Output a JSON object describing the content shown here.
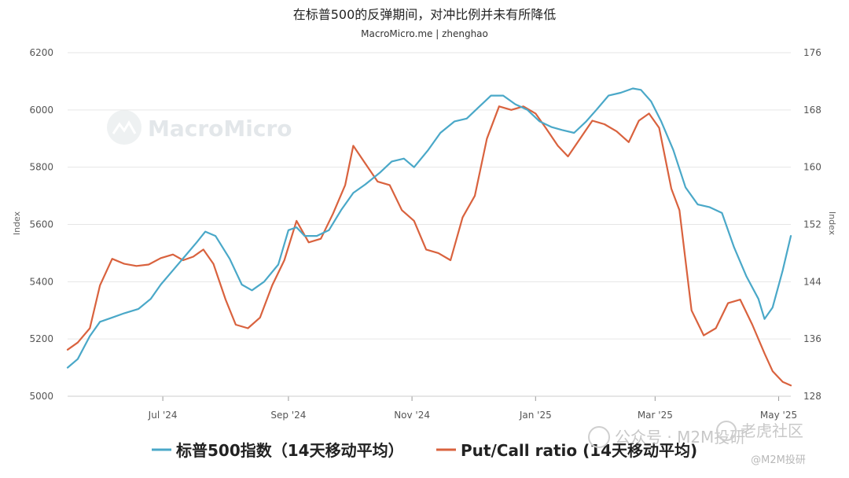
{
  "chart_data": {
    "type": "line",
    "title": "在标普500的反弹期间，对冲比例并未有所降低",
    "subtitle": "MacroMicro.me | zhenghao",
    "xlabel": "",
    "y_left_label": "Index",
    "y_right_label": "Index",
    "y_left_lim": [
      5000,
      6200
    ],
    "y_left_ticks": [
      "6200",
      "6000",
      "5800",
      "5600",
      "5400",
      "5200",
      "5000"
    ],
    "y_right_lim": [
      128,
      176
    ],
    "y_right_ticks": [
      "176",
      "168",
      "160",
      "152",
      "144",
      "136",
      "128"
    ],
    "x_range": [
      "2024-05-15",
      "2025-05-07"
    ],
    "x_ticks": [
      {
        "date": "2024-07-01",
        "label": "Jul '24"
      },
      {
        "date": "2024-09-01",
        "label": "Sep '24"
      },
      {
        "date": "2024-11-01",
        "label": "Nov '24"
      },
      {
        "date": "2025-01-01",
        "label": "Jan '25"
      },
      {
        "date": "2025-03-01",
        "label": "Mar '25"
      },
      {
        "date": "2025-05-01",
        "label": "May '25"
      }
    ],
    "grid": true,
    "legend_position": "bottom",
    "series": [
      {
        "name": "标普500指数（14天移动平均）",
        "axis": "left",
        "color": "#4aa8c8",
        "points": [
          [
            "2024-05-15",
            5100
          ],
          [
            "2024-05-20",
            5130
          ],
          [
            "2024-05-26",
            5210
          ],
          [
            "2024-05-31",
            5260
          ],
          [
            "2024-06-06",
            5275
          ],
          [
            "2024-06-12",
            5290
          ],
          [
            "2024-06-19",
            5305
          ],
          [
            "2024-06-25",
            5340
          ],
          [
            "2024-06-30",
            5390
          ],
          [
            "2024-07-06",
            5440
          ],
          [
            "2024-07-12",
            5490
          ],
          [
            "2024-07-18",
            5540
          ],
          [
            "2024-07-22",
            5575
          ],
          [
            "2024-07-27",
            5560
          ],
          [
            "2024-08-03",
            5480
          ],
          [
            "2024-08-09",
            5390
          ],
          [
            "2024-08-14",
            5370
          ],
          [
            "2024-08-20",
            5400
          ],
          [
            "2024-08-27",
            5460
          ],
          [
            "2024-09-01",
            5580
          ],
          [
            "2024-09-05",
            5590
          ],
          [
            "2024-09-09",
            5560
          ],
          [
            "2024-09-15",
            5560
          ],
          [
            "2024-09-21",
            5580
          ],
          [
            "2024-09-27",
            5650
          ],
          [
            "2024-10-03",
            5710
          ],
          [
            "2024-10-09",
            5740
          ],
          [
            "2024-10-16",
            5780
          ],
          [
            "2024-10-22",
            5820
          ],
          [
            "2024-10-28",
            5830
          ],
          [
            "2024-11-02",
            5800
          ],
          [
            "2024-11-09",
            5860
          ],
          [
            "2024-11-15",
            5920
          ],
          [
            "2024-11-22",
            5960
          ],
          [
            "2024-11-28",
            5970
          ],
          [
            "2024-12-04",
            6010
          ],
          [
            "2024-12-10",
            6050
          ],
          [
            "2024-12-16",
            6050
          ],
          [
            "2024-12-22",
            6020
          ],
          [
            "2024-12-28",
            6000
          ],
          [
            "2025-01-03",
            5960
          ],
          [
            "2025-01-09",
            5940
          ],
          [
            "2025-01-14",
            5930
          ],
          [
            "2025-01-20",
            5920
          ],
          [
            "2025-01-26",
            5960
          ],
          [
            "2025-01-31",
            6000
          ],
          [
            "2025-02-06",
            6050
          ],
          [
            "2025-02-12",
            6060
          ],
          [
            "2025-02-18",
            6075
          ],
          [
            "2025-02-22",
            6070
          ],
          [
            "2025-02-27",
            6030
          ],
          [
            "2025-03-04",
            5960
          ],
          [
            "2025-03-10",
            5860
          ],
          [
            "2025-03-16",
            5730
          ],
          [
            "2025-03-22",
            5670
          ],
          [
            "2025-03-28",
            5660
          ],
          [
            "2025-04-03",
            5640
          ],
          [
            "2025-04-09",
            5520
          ],
          [
            "2025-04-15",
            5420
          ],
          [
            "2025-04-21",
            5340
          ],
          [
            "2025-04-24",
            5270
          ],
          [
            "2025-04-28",
            5310
          ],
          [
            "2025-05-03",
            5440
          ],
          [
            "2025-05-07",
            5560
          ]
        ]
      },
      {
        "name": "Put/Call ratio (14天移动平均)",
        "axis": "right",
        "color": "#d9623e",
        "points": [
          [
            "2024-05-15",
            134.5
          ],
          [
            "2024-05-20",
            135.5
          ],
          [
            "2024-05-26",
            137.5
          ],
          [
            "2024-05-31",
            143.5
          ],
          [
            "2024-06-06",
            147.2
          ],
          [
            "2024-06-12",
            146.5
          ],
          [
            "2024-06-18",
            146.2
          ],
          [
            "2024-06-24",
            146.4
          ],
          [
            "2024-06-30",
            147.3
          ],
          [
            "2024-07-06",
            147.8
          ],
          [
            "2024-07-11",
            147.0
          ],
          [
            "2024-07-16",
            147.5
          ],
          [
            "2024-07-21",
            148.5
          ],
          [
            "2024-07-26",
            146.5
          ],
          [
            "2024-08-01",
            141.5
          ],
          [
            "2024-08-06",
            138.0
          ],
          [
            "2024-08-12",
            137.5
          ],
          [
            "2024-08-18",
            139.0
          ],
          [
            "2024-08-24",
            143.5
          ],
          [
            "2024-08-30",
            147.0
          ],
          [
            "2024-09-05",
            152.5
          ],
          [
            "2024-09-11",
            149.5
          ],
          [
            "2024-09-17",
            150.0
          ],
          [
            "2024-09-23",
            153.5
          ],
          [
            "2024-09-29",
            157.5
          ],
          [
            "2024-10-03",
            163.0
          ],
          [
            "2024-10-09",
            160.5
          ],
          [
            "2024-10-15",
            158.0
          ],
          [
            "2024-10-21",
            157.5
          ],
          [
            "2024-10-27",
            154.0
          ],
          [
            "2024-11-02",
            152.5
          ],
          [
            "2024-11-08",
            148.5
          ],
          [
            "2024-11-14",
            148.0
          ],
          [
            "2024-11-20",
            147.0
          ],
          [
            "2024-11-26",
            153.0
          ],
          [
            "2024-12-02",
            156.0
          ],
          [
            "2024-12-08",
            164.0
          ],
          [
            "2024-12-14",
            168.5
          ],
          [
            "2024-12-20",
            168.0
          ],
          [
            "2024-12-26",
            168.5
          ],
          [
            "2025-01-01",
            167.5
          ],
          [
            "2025-01-06",
            165.5
          ],
          [
            "2025-01-12",
            163.0
          ],
          [
            "2025-01-17",
            161.5
          ],
          [
            "2025-01-23",
            164.0
          ],
          [
            "2025-01-29",
            166.5
          ],
          [
            "2025-02-04",
            166.0
          ],
          [
            "2025-02-10",
            165.0
          ],
          [
            "2025-02-16",
            163.5
          ],
          [
            "2025-02-21",
            166.5
          ],
          [
            "2025-02-26",
            167.5
          ],
          [
            "2025-03-03",
            165.5
          ],
          [
            "2025-03-09",
            157.0
          ],
          [
            "2025-03-13",
            154.0
          ],
          [
            "2025-03-19",
            140.0
          ],
          [
            "2025-03-25",
            136.5
          ],
          [
            "2025-03-31",
            137.5
          ],
          [
            "2025-04-06",
            141.0
          ],
          [
            "2025-04-12",
            141.5
          ],
          [
            "2025-04-18",
            138.0
          ],
          [
            "2025-04-24",
            134.0
          ],
          [
            "2025-04-28",
            131.5
          ],
          [
            "2025-05-03",
            130.0
          ],
          [
            "2025-05-07",
            129.5
          ]
        ]
      }
    ]
  },
  "watermark": {
    "brand": "MacroMicro",
    "footer_mark": "公众号 · M2M投研",
    "footer_mark_right": "老虎社区",
    "footer_handle": "@M2M投研"
  }
}
